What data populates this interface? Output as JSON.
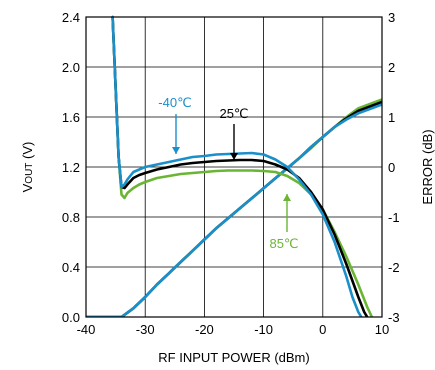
{
  "chart_data": {
    "type": "line",
    "title": "",
    "xlabel": "RF INPUT POWER (dBm)",
    "ylabel_left": {
      "main": "V",
      "sub": "OUT",
      "unit": " (V)"
    },
    "ylabel_right": "ERROR (dB)",
    "xlim": [
      -40,
      10
    ],
    "ylim_left": [
      0,
      2.4
    ],
    "ylim_right": [
      -3,
      3
    ],
    "xticks": [
      -40,
      -30,
      -20,
      -10,
      0,
      10
    ],
    "yticks_left": [
      "0.0",
      "0.4",
      "0.8",
      "1.2",
      "1.6",
      "2.0",
      "2.4"
    ],
    "yticks_right": [
      "-3",
      "-2",
      "-1",
      "0",
      "1",
      "2",
      "3"
    ],
    "grid": true,
    "series": [
      {
        "name": "-40°C",
        "axis": "left",
        "color": "#1a8fc9",
        "x": [
          -34,
          -32,
          -30,
          -28,
          -26,
          -24,
          -22,
          -20,
          -18,
          -16,
          -14,
          -12,
          -10,
          -8,
          -6,
          -4,
          -2,
          0,
          2,
          4,
          6
        ],
        "y": [
          0.0,
          0.07,
          0.16,
          0.26,
          0.35,
          0.44,
          0.53,
          0.62,
          0.71,
          0.79,
          0.87,
          0.95,
          1.03,
          1.11,
          1.19,
          1.27,
          1.36,
          1.44,
          1.52,
          1.58,
          1.63
        ]
      },
      {
        "name": "25°C",
        "axis": "left",
        "color": "#000000",
        "x": [
          -34,
          -32,
          -30,
          -28,
          -26,
          -24,
          -22,
          -20,
          -18,
          -16,
          -14,
          -12,
          -10,
          -8,
          -6,
          -4,
          -2,
          0,
          2,
          4,
          6
        ],
        "y": [
          0.0,
          0.07,
          0.16,
          0.26,
          0.35,
          0.44,
          0.53,
          0.62,
          0.71,
          0.79,
          0.87,
          0.95,
          1.03,
          1.11,
          1.19,
          1.27,
          1.36,
          1.44,
          1.52,
          1.59,
          1.65
        ]
      },
      {
        "name": "85°C",
        "axis": "left",
        "color": "#6ab534",
        "x": [
          -34,
          -32,
          -30,
          -28,
          -26,
          -24,
          -22,
          -20,
          -18,
          -16,
          -14,
          -12,
          -10,
          -8,
          -6,
          -4,
          -2,
          0,
          2,
          4,
          6
        ],
        "y": [
          0.0,
          0.07,
          0.16,
          0.26,
          0.35,
          0.44,
          0.53,
          0.62,
          0.71,
          0.79,
          0.87,
          0.95,
          1.03,
          1.11,
          1.19,
          1.27,
          1.35,
          1.44,
          1.52,
          1.6,
          1.67
        ]
      },
      {
        "name": "-40°C",
        "axis": "right",
        "color": "#1a8fc9",
        "x": [
          -35.5,
          -35,
          -34.5,
          -34,
          -33.5,
          -33,
          -32,
          -31,
          -30,
          -28,
          -26,
          -24,
          -22,
          -20,
          -18,
          -16,
          -14,
          -12,
          -10,
          -8,
          -6,
          -4,
          -2,
          0,
          2,
          4,
          5,
          6,
          6.5
        ],
        "y": [
          3.0,
          1.6,
          0.2,
          -0.4,
          -0.35,
          -0.25,
          -0.1,
          -0.05,
          0.0,
          0.05,
          0.1,
          0.15,
          0.2,
          0.22,
          0.25,
          0.26,
          0.27,
          0.28,
          0.25,
          0.15,
          0.0,
          -0.25,
          -0.55,
          -0.95,
          -1.5,
          -2.2,
          -2.6,
          -2.9,
          -3.0
        ]
      },
      {
        "name": "25°C",
        "axis": "right",
        "color": "#000000",
        "x": [
          -35.5,
          -35,
          -34.5,
          -34,
          -33.5,
          -33,
          -32,
          -31,
          -30,
          -28,
          -26,
          -24,
          -22,
          -20,
          -18,
          -16,
          -14,
          -12,
          -10,
          -8,
          -6,
          -4,
          -2,
          0,
          2,
          4,
          6,
          7,
          7.5
        ],
        "y": [
          3.0,
          1.6,
          0.2,
          -0.4,
          -0.42,
          -0.35,
          -0.22,
          -0.16,
          -0.12,
          -0.05,
          0.0,
          0.05,
          0.08,
          0.1,
          0.12,
          0.13,
          0.14,
          0.14,
          0.12,
          0.05,
          -0.05,
          -0.22,
          -0.5,
          -0.85,
          -1.35,
          -1.95,
          -2.6,
          -2.9,
          -3.0
        ]
      },
      {
        "name": "85°C",
        "axis": "right",
        "color": "#6ab534",
        "x": [
          -35.5,
          -35,
          -34.5,
          -34,
          -33.5,
          -33,
          -32,
          -31,
          -30,
          -28,
          -26,
          -24,
          -22,
          -20,
          -18,
          -16,
          -14,
          -12,
          -10,
          -8,
          -6,
          -4,
          -2,
          0,
          2,
          4,
          6,
          7.5,
          8.3
        ],
        "y": [
          3.0,
          1.6,
          0.2,
          -0.55,
          -0.62,
          -0.52,
          -0.42,
          -0.35,
          -0.3,
          -0.22,
          -0.18,
          -0.14,
          -0.12,
          -0.1,
          -0.08,
          -0.07,
          -0.07,
          -0.07,
          -0.08,
          -0.1,
          -0.18,
          -0.32,
          -0.55,
          -0.85,
          -1.3,
          -1.8,
          -2.35,
          -2.8,
          -3.0
        ]
      }
    ],
    "annotations": [
      {
        "text": "-40℃",
        "color": "#1a8fc9"
      },
      {
        "text": "25℃",
        "color": "#000000"
      },
      {
        "text": "85℃",
        "color": "#6ab534"
      }
    ]
  }
}
